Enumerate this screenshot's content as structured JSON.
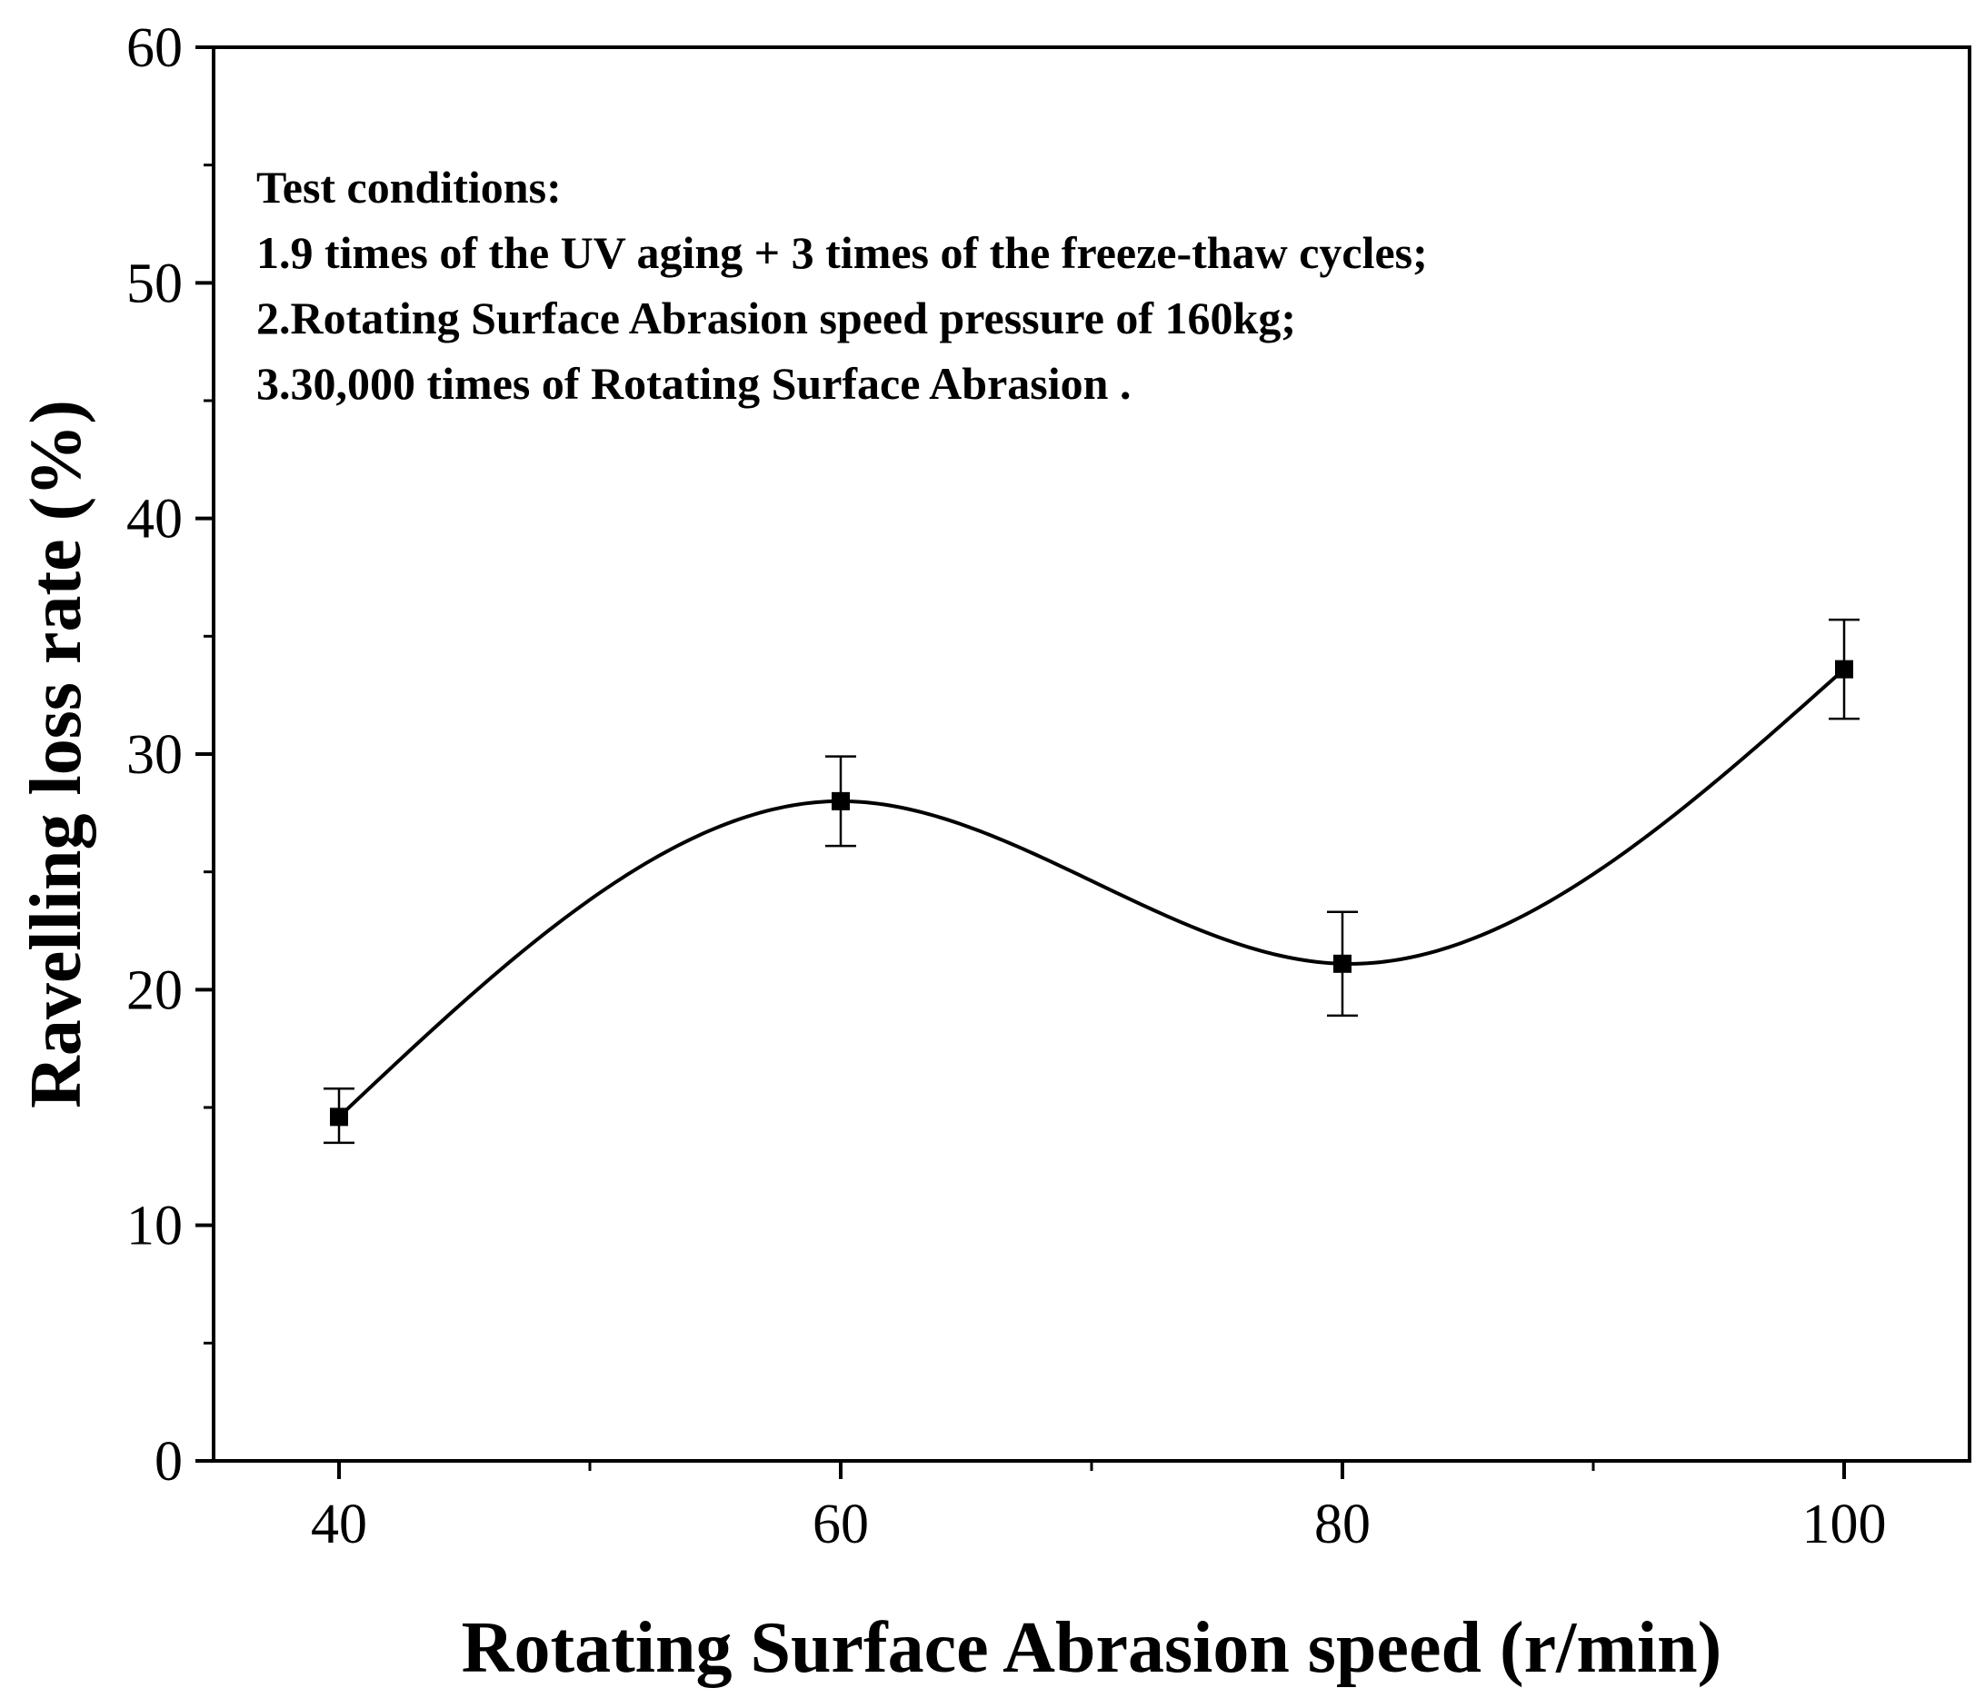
{
  "chart_data": {
    "type": "line",
    "title": "",
    "xlabel": "Rotating Surface Abrasion speed (r/min)",
    "ylabel": "Ravelling loss rate (%)",
    "xlim": [
      35,
      105
    ],
    "ylim": [
      0,
      60
    ],
    "xticks": [
      40,
      60,
      80,
      100
    ],
    "xminor": [
      50,
      70,
      90
    ],
    "yticks": [
      0,
      10,
      20,
      30,
      40,
      50,
      60
    ],
    "yminor": [
      5,
      15,
      25,
      35,
      45,
      55
    ],
    "grid": false,
    "smooth": true,
    "series": [
      {
        "name": "Ravelling loss rate",
        "color": "#000000",
        "marker": "square",
        "x": [
          40,
          60,
          80,
          100
        ],
        "y": [
          14.6,
          28.0,
          21.1,
          33.6
        ],
        "err_low": [
          1.1,
          1.9,
          2.2,
          2.1
        ],
        "err_high": [
          1.2,
          1.9,
          2.2,
          2.1
        ]
      }
    ],
    "annotations": [
      "Test conditions:",
      "1.9 times of the UV aging + 3 times of the freeze-thaw cycles;",
      "2.Rotating Surface Abrasion speed pressure of 160kg;",
      "3.30,000 times of Rotating Surface Abrasion ."
    ]
  }
}
